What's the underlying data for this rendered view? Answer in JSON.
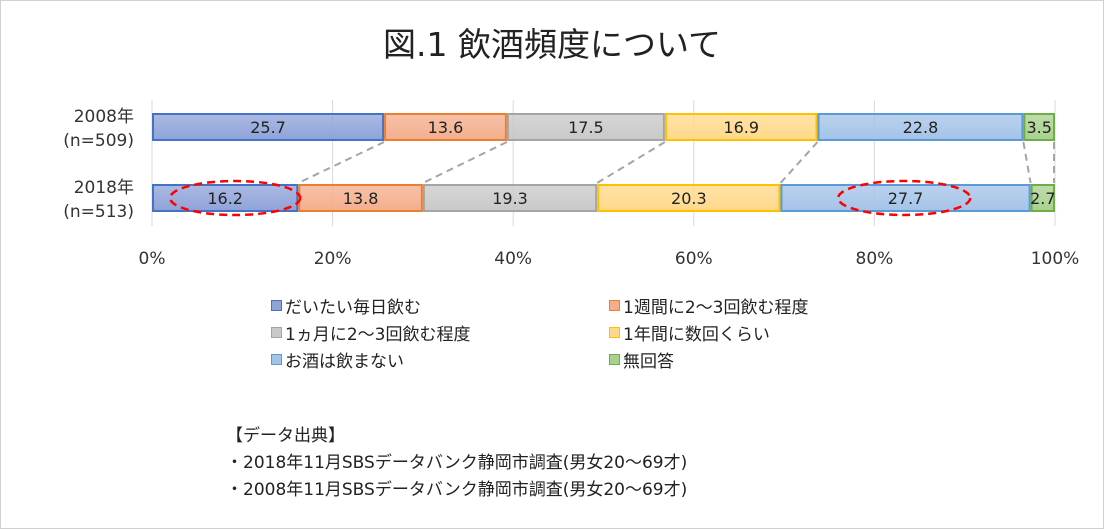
{
  "chart_data": {
    "type": "bar",
    "orientation": "horizontal",
    "stacked": "percent",
    "title": "図.1  飲酒頻度について",
    "categories": [
      {
        "year": "2008年",
        "n": "(n=509)"
      },
      {
        "year": "2018年",
        "n": "(n=513)"
      }
    ],
    "series": [
      {
        "name": "だいたい毎日飲む",
        "values": [
          25.7,
          16.2
        ],
        "color": "#8fa3d9",
        "border": "#4472c4"
      },
      {
        "name": "1週間に2～3回飲む程度",
        "values": [
          13.6,
          13.8
        ],
        "color": "#f4ae8c",
        "border": "#ed7d31"
      },
      {
        "name": "1ヵ月に2～3回飲む程度",
        "values": [
          17.5,
          19.3
        ],
        "color": "#c9c9c9",
        "border": "#a5a5a5"
      },
      {
        "name": "1年間に数回くらい",
        "values": [
          16.9,
          20.3
        ],
        "color": "#ffd98a",
        "border": "#ffc000"
      },
      {
        "name": "お酒は飲まない",
        "values": [
          22.8,
          27.7
        ],
        "color": "#a4c3e8",
        "border": "#5b9bd5"
      },
      {
        "name": "無回答",
        "values": [
          3.5,
          2.7
        ],
        "color": "#a9d18e",
        "border": "#70ad47"
      }
    ],
    "xticks": [
      "0%",
      "20%",
      "40%",
      "60%",
      "80%",
      "100%"
    ],
    "xlim": [
      0,
      100
    ],
    "grid": true,
    "legend": "bottom",
    "highlight_color": "#ff0000"
  },
  "source": {
    "heading": "【データ出典】",
    "lines": [
      "・2018年11月SBSデータバンク静岡市調査(男女20～69才)",
      "・2008年11月SBSデータバンク静岡市調査(男女20～69才)"
    ]
  }
}
